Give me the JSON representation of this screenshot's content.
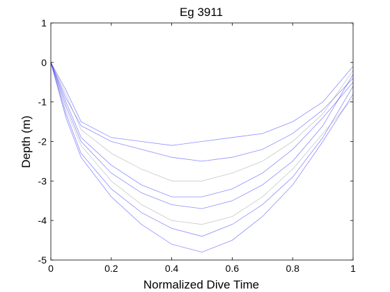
{
  "chart_data": {
    "type": "line",
    "title": "Eg 3911",
    "xlabel": "Normalized Dive Time",
    "ylabel": "Depth (m)",
    "xlim": [
      0,
      1
    ],
    "ylim": [
      -5,
      1
    ],
    "xticks": [
      "0",
      "0.2",
      "0.4",
      "0.6",
      "0.8",
      "1"
    ],
    "yticks": [
      "1",
      "0",
      "-1",
      "-2",
      "-3",
      "-4",
      "-5"
    ],
    "grid": false,
    "legend": "none",
    "colors": {
      "primary_series": "#0000ff",
      "secondary_series": "#9a9a9a",
      "axes": "#000000"
    },
    "series": [
      {
        "values": [
          {
            "x": 0.0,
            "y": 0.0
          },
          {
            "x": 0.05,
            "y": -0.9
          },
          {
            "x": 0.1,
            "y": -1.6
          },
          {
            "x": 0.2,
            "y": -2.0
          },
          {
            "x": 0.3,
            "y": -2.2
          },
          {
            "x": 0.4,
            "y": -2.4
          },
          {
            "x": 0.5,
            "y": -2.5
          },
          {
            "x": 0.6,
            "y": -2.4
          },
          {
            "x": 0.7,
            "y": -2.2
          },
          {
            "x": 0.8,
            "y": -1.8
          },
          {
            "x": 0.9,
            "y": -1.2
          },
          {
            "x": 1.0,
            "y": -0.4
          }
        ]
      },
      {
        "values": [
          {
            "x": 0.0,
            "y": 0.0
          },
          {
            "x": 0.05,
            "y": -1.1
          },
          {
            "x": 0.1,
            "y": -2.0
          },
          {
            "x": 0.2,
            "y": -2.8
          },
          {
            "x": 0.3,
            "y": -3.3
          },
          {
            "x": 0.4,
            "y": -3.6
          },
          {
            "x": 0.5,
            "y": -3.7
          },
          {
            "x": 0.6,
            "y": -3.5
          },
          {
            "x": 0.7,
            "y": -3.1
          },
          {
            "x": 0.8,
            "y": -2.5
          },
          {
            "x": 0.9,
            "y": -1.6
          },
          {
            "x": 1.0,
            "y": -0.3
          }
        ]
      },
      {
        "values": [
          {
            "x": 0.0,
            "y": 0.0
          },
          {
            "x": 0.05,
            "y": -0.8
          },
          {
            "x": 0.1,
            "y": -1.7
          },
          {
            "x": 0.2,
            "y": -2.3
          },
          {
            "x": 0.3,
            "y": -2.7
          },
          {
            "x": 0.4,
            "y": -3.0
          },
          {
            "x": 0.5,
            "y": -3.0
          },
          {
            "x": 0.6,
            "y": -2.8
          },
          {
            "x": 0.7,
            "y": -2.5
          },
          {
            "x": 0.8,
            "y": -2.0
          },
          {
            "x": 0.9,
            "y": -1.3
          },
          {
            "x": 1.0,
            "y": -0.2
          }
        ]
      },
      {
        "values": [
          {
            "x": 0.0,
            "y": 0.0
          },
          {
            "x": 0.05,
            "y": -1.3
          },
          {
            "x": 0.1,
            "y": -2.3
          },
          {
            "x": 0.2,
            "y": -3.2
          },
          {
            "x": 0.3,
            "y": -3.8
          },
          {
            "x": 0.4,
            "y": -4.2
          },
          {
            "x": 0.5,
            "y": -4.4
          },
          {
            "x": 0.6,
            "y": -4.1
          },
          {
            "x": 0.7,
            "y": -3.6
          },
          {
            "x": 0.8,
            "y": -2.9
          },
          {
            "x": 0.9,
            "y": -1.9
          },
          {
            "x": 1.0,
            "y": -0.6
          }
        ]
      },
      {
        "values": [
          {
            "x": 0.0,
            "y": 0.0
          },
          {
            "x": 0.05,
            "y": -0.7
          },
          {
            "x": 0.1,
            "y": -1.5
          },
          {
            "x": 0.2,
            "y": -1.9
          },
          {
            "x": 0.3,
            "y": -2.0
          },
          {
            "x": 0.4,
            "y": -2.1
          },
          {
            "x": 0.5,
            "y": -2.0
          },
          {
            "x": 0.6,
            "y": -1.9
          },
          {
            "x": 0.7,
            "y": -1.8
          },
          {
            "x": 0.8,
            "y": -1.5
          },
          {
            "x": 0.9,
            "y": -1.0
          },
          {
            "x": 1.0,
            "y": -0.1
          }
        ]
      },
      {
        "values": [
          {
            "x": 0.0,
            "y": 0.0
          },
          {
            "x": 0.05,
            "y": -1.2
          },
          {
            "x": 0.1,
            "y": -2.1
          },
          {
            "x": 0.2,
            "y": -3.0
          },
          {
            "x": 0.3,
            "y": -3.6
          },
          {
            "x": 0.4,
            "y": -4.0
          },
          {
            "x": 0.5,
            "y": -4.1
          },
          {
            "x": 0.6,
            "y": -3.9
          },
          {
            "x": 0.7,
            "y": -3.4
          },
          {
            "x": 0.8,
            "y": -2.7
          },
          {
            "x": 0.9,
            "y": -1.8
          },
          {
            "x": 1.0,
            "y": -0.9
          }
        ]
      },
      {
        "values": [
          {
            "x": 0.0,
            "y": 0.0
          },
          {
            "x": 0.05,
            "y": -1.0
          },
          {
            "x": 0.1,
            "y": -1.9
          },
          {
            "x": 0.2,
            "y": -2.6
          },
          {
            "x": 0.3,
            "y": -3.1
          },
          {
            "x": 0.4,
            "y": -3.4
          },
          {
            "x": 0.5,
            "y": -3.4
          },
          {
            "x": 0.6,
            "y": -3.2
          },
          {
            "x": 0.7,
            "y": -2.8
          },
          {
            "x": 0.8,
            "y": -2.2
          },
          {
            "x": 0.9,
            "y": -1.4
          },
          {
            "x": 1.0,
            "y": -0.5
          }
        ]
      },
      {
        "values": [
          {
            "x": 0.0,
            "y": 0.0
          },
          {
            "x": 0.05,
            "y": -1.4
          },
          {
            "x": 0.1,
            "y": -2.4
          },
          {
            "x": 0.2,
            "y": -3.4
          },
          {
            "x": 0.3,
            "y": -4.1
          },
          {
            "x": 0.4,
            "y": -4.6
          },
          {
            "x": 0.5,
            "y": -4.8
          },
          {
            "x": 0.6,
            "y": -4.5
          },
          {
            "x": 0.7,
            "y": -3.9
          },
          {
            "x": 0.8,
            "y": -3.1
          },
          {
            "x": 0.9,
            "y": -2.0
          },
          {
            "x": 1.0,
            "y": -0.8
          }
        ]
      }
    ]
  }
}
